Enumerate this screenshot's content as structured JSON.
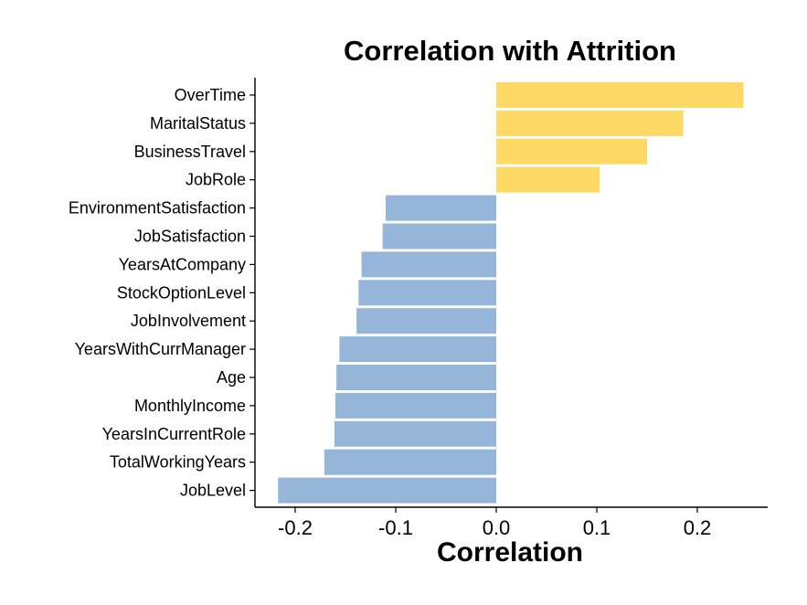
{
  "chart_data": {
    "type": "bar",
    "orientation": "horizontal",
    "title": "Correlation with Attrition",
    "xlabel": "Correlation",
    "ylabel": "",
    "categories": [
      "OverTime",
      "MaritalStatus",
      "BusinessTravel",
      "JobRole",
      "EnvironmentSatisfaction",
      "JobSatisfaction",
      "YearsAtCompany",
      "StockOptionLevel",
      "JobInvolvement",
      "YearsWithCurrManager",
      "Age",
      "MonthlyIncome",
      "YearsInCurrentRole",
      "TotalWorkingYears",
      "JobLevel"
    ],
    "values": [
      0.246,
      0.186,
      0.15,
      0.103,
      -0.11,
      -0.113,
      -0.134,
      -0.137,
      -0.139,
      -0.156,
      -0.159,
      -0.16,
      -0.161,
      -0.171,
      -0.217
    ],
    "xlim": [
      -0.24,
      0.27
    ],
    "xticks": [
      -0.2,
      -0.1,
      0.0,
      0.1,
      0.2
    ],
    "xtick_labels": [
      "-0.2",
      "-0.1",
      "0.0",
      "0.1",
      "0.2"
    ],
    "grid": false,
    "legend": false,
    "colors": {
      "positive": "#FFD966",
      "negative": "#95B6D8",
      "axis": "#000000",
      "background": "#FFFFFF"
    }
  }
}
